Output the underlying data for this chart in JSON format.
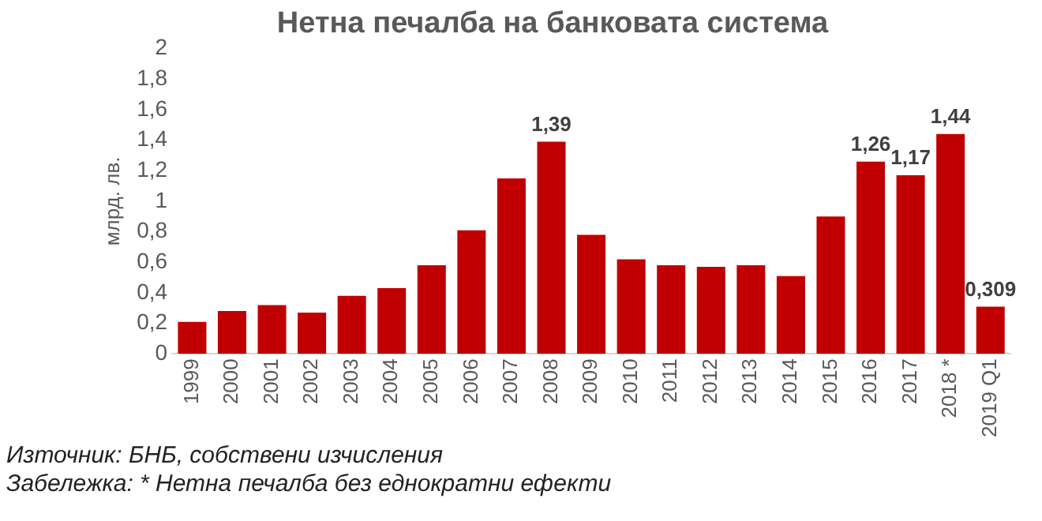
{
  "chart_data": {
    "type": "bar",
    "title": "Нетна печалба на банковата система",
    "ylabel": "млрд. лв.",
    "categories": [
      "1999",
      "2000",
      "2001",
      "2002",
      "2003",
      "2004",
      "2005",
      "2006",
      "2007",
      "2008",
      "2009",
      "2010",
      "2011",
      "2012",
      "2013",
      "2014",
      "2015",
      "2016",
      "2017",
      "2018 *",
      "2019 Q1"
    ],
    "values": [
      0.21,
      0.28,
      0.32,
      0.27,
      0.38,
      0.43,
      0.58,
      0.81,
      1.15,
      1.39,
      0.78,
      0.62,
      0.58,
      0.57,
      0.58,
      0.51,
      0.9,
      1.26,
      1.17,
      1.44,
      0.309
    ],
    "value_labels": [
      null,
      null,
      null,
      null,
      null,
      null,
      null,
      null,
      null,
      "1,39",
      null,
      null,
      null,
      null,
      null,
      null,
      null,
      "1,26",
      "1,17",
      "1,44",
      "0,309"
    ],
    "color": "#c00000",
    "ylim": [
      0,
      2
    ],
    "yticks": [
      {
        "value": 0,
        "label": "0"
      },
      {
        "value": 0.2,
        "label": "0,2"
      },
      {
        "value": 0.4,
        "label": "0,4"
      },
      {
        "value": 0.6,
        "label": "0,6"
      },
      {
        "value": 0.8,
        "label": "0,8"
      },
      {
        "value": 1,
        "label": "1"
      },
      {
        "value": 1.2,
        "label": "1,2"
      },
      {
        "value": 1.4,
        "label": "1,4"
      },
      {
        "value": 1.6,
        "label": "1,6"
      },
      {
        "value": 1.8,
        "label": "1,8"
      },
      {
        "value": 2,
        "label": "2"
      }
    ],
    "grid": false,
    "legend": false,
    "annotations": [
      "Източник: БНБ, собствени изчисления",
      "Забележка: * Нетна печалба без еднократни ефекти"
    ]
  }
}
